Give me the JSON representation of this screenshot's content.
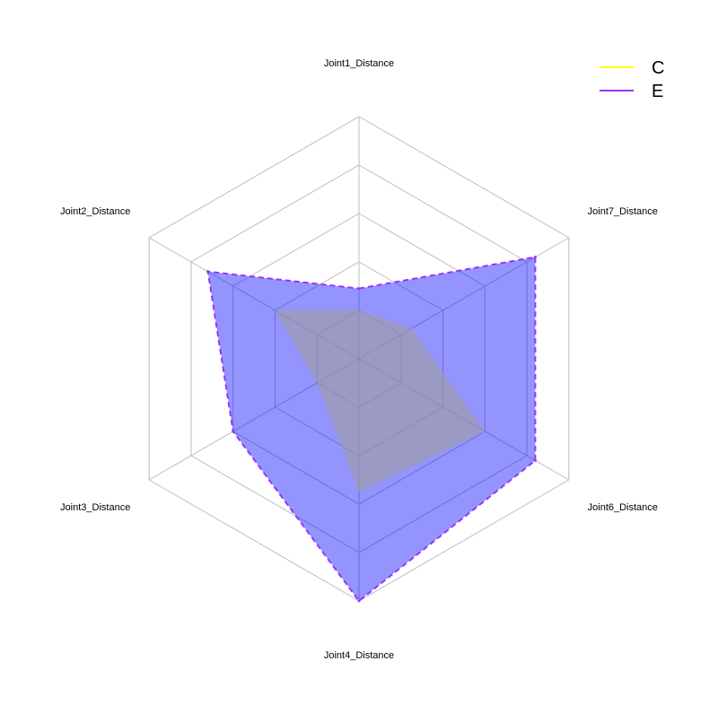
{
  "chart_data": {
    "type": "radar",
    "axes": [
      "Joint1_Distance",
      "Joint7_Distance",
      "Joint6_Distance",
      "Joint4_Distance",
      "Joint3_Distance",
      "Joint2_Distance"
    ],
    "rmax": 1.0,
    "grid_levels": [
      0.2,
      0.4,
      0.6,
      0.8,
      1.0
    ],
    "grid": true,
    "legend_position": "top-right",
    "series": [
      {
        "name": "C",
        "color": "#ffff00",
        "fill": "#9e9e9e",
        "fill_opacity": 0.6,
        "line_style": "solid",
        "values": [
          0.2,
          0.25,
          0.6,
          0.55,
          0.2,
          0.4
        ]
      },
      {
        "name": "E",
        "color": "#9933ff",
        "fill": "#0000ff",
        "fill_opacity": 0.42,
        "line_style": "dashed",
        "values": [
          0.29,
          0.84,
          0.84,
          1.0,
          0.6,
          0.72
        ]
      }
    ]
  }
}
